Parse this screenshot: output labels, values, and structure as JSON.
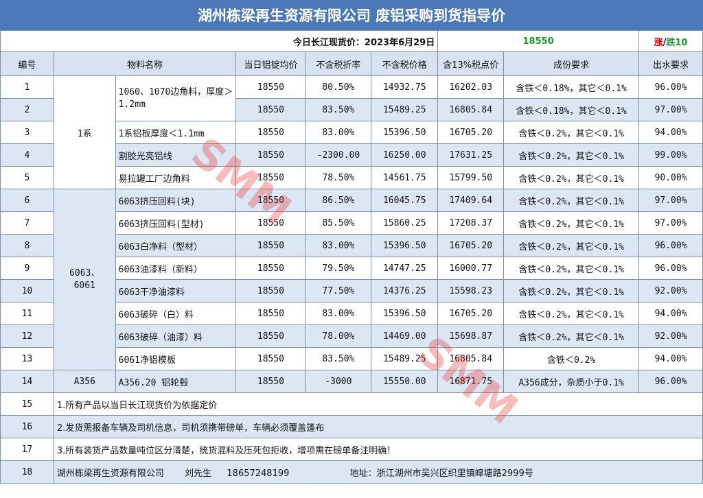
{
  "title": "湖州栋梁再生资源有限公司 废铝采购到货指导价",
  "price_bar": {
    "label": "今日长江现货价：2023年6月29日",
    "price": "18550",
    "up": "涨",
    "slash": "/",
    "down": "跌10"
  },
  "headers": [
    "编号",
    "物料名称",
    "当日铝锭均价",
    "不含税折率",
    "不含税价格",
    "含13%税点价",
    "成份要求",
    "出水要求"
  ],
  "groups": {
    "g1": "1系",
    "g2": "6063、\n6061",
    "g3": "A356"
  },
  "rows": [
    {
      "no": "1",
      "name": "1060、1070边角料，厚度＞1.2mm",
      "avg": "18550",
      "rate": "80.50%",
      "notax": "14932.75",
      "tax": "16202.03",
      "comp": "含铁＜0.18%，其它＜0.1%",
      "water": "96.00%"
    },
    {
      "no": "2",
      "name": "",
      "avg": "18550",
      "rate": "83.50%",
      "notax": "15489.25",
      "tax": "16805.84",
      "comp": "含铁＜0.18%，其它＜0.1%",
      "water": "97.00%"
    },
    {
      "no": "3",
      "name": "1系铝板厚度＜1.1mm",
      "avg": "18550",
      "rate": "83.00%",
      "notax": "15396.50",
      "tax": "16705.20",
      "comp": "含铁＜0.2%，其它＜0.1%",
      "water": "94.00%"
    },
    {
      "no": "4",
      "name": "割胶光亮铝线",
      "avg": "18550",
      "rate": "-2300.00",
      "notax": "16250.00",
      "tax": "17631.25",
      "comp": "含铁＜0.2%，其它＜0.1%",
      "water": "99.00%"
    },
    {
      "no": "5",
      "name": "易拉罐工厂边角料",
      "avg": "18550",
      "rate": "78.50%",
      "notax": "14561.75",
      "tax": "15799.50",
      "comp": "含铁＜0.2%，其它＜0.1%",
      "water": "90.00%"
    },
    {
      "no": "6",
      "name": "6063挤压回料(块)",
      "avg": "18550",
      "rate": "86.50%",
      "notax": "16045.75",
      "tax": "17409.64",
      "comp": "含铁＜0.2%，其它＜0.1%",
      "water": "97.00%"
    },
    {
      "no": "7",
      "name": "6063挤压回料(型材)",
      "avg": "18550",
      "rate": "85.50%",
      "notax": "15860.25",
      "tax": "17208.37",
      "comp": "含铁＜0.2%，其它＜0.1%",
      "water": "97.00%"
    },
    {
      "no": "8",
      "name": "6063白净料（型材）",
      "avg": "18550",
      "rate": "83.00%",
      "notax": "15396.50",
      "tax": "16705.20",
      "comp": "含铁＜0.2%，其它＜0.1%",
      "water": "96.00%"
    },
    {
      "no": "9",
      "name": "6063油漆料（新料）",
      "avg": "18550",
      "rate": "79.50%",
      "notax": "14747.25",
      "tax": "16000.77",
      "comp": "含铁＜0.2%，其它＜0.1%",
      "water": "96.00%"
    },
    {
      "no": "10",
      "name": "6063干净油漆料",
      "avg": "18550",
      "rate": "77.50%",
      "notax": "14376.25",
      "tax": "15598.23",
      "comp": "含铁＜0.2%，其它＜0.1%",
      "water": "92.00%"
    },
    {
      "no": "11",
      "name": "6063破碎（白）料",
      "avg": "18550",
      "rate": "83.00%",
      "notax": "15396.50",
      "tax": "16705.20",
      "comp": "含铁＜0.2%，其它＜0.1%",
      "water": "94.00%"
    },
    {
      "no": "12",
      "name": "6063破碎（油漆）料",
      "avg": "18550",
      "rate": "78.00%",
      "notax": "14469.00",
      "tax": "15698.87",
      "comp": "含铁＜0.2%，其它＜0.1%",
      "water": "92.00%"
    },
    {
      "no": "13",
      "name": "6061净铝模板",
      "avg": "18550",
      "rate": "83.50%",
      "notax": "15489.25",
      "tax": "16805.84",
      "comp": "含铁＜0.2%",
      "water": "94.00%"
    },
    {
      "no": "14",
      "name": "A356.20 铝轮毂",
      "avg": "18550",
      "rate": "-3000",
      "notax": "15550.00",
      "tax": "16871.75",
      "comp": "A356成分，杂质小于0.1%",
      "water": "96.00%"
    }
  ],
  "notes": [
    {
      "no": "15",
      "text": "1.所有产品以当日长江现货价为依据定价"
    },
    {
      "no": "16",
      "text": "2.发货需报备车辆及司机信息，司机须携带磅单，车辆必须覆盖篷布"
    },
    {
      "no": "17",
      "text": "3.所有装货产品数量吨位区分清楚，统货混料及压死包拒收，增项需在磅单备注明确！"
    }
  ],
  "footer": {
    "no": "18",
    "company": "湖州栋梁再生资源有限公司",
    "contact": "刘先生",
    "phone": "18657248199",
    "address": "地址：浙江湖州市吴兴区织里镇皡塘路2999号"
  },
  "watermark": "SMM",
  "colors": {
    "header_bg": "#4a78b8",
    "row_blue": "#dde7f4",
    "price_green": "#1a9a2e",
    "up_red": "#d00000"
  }
}
